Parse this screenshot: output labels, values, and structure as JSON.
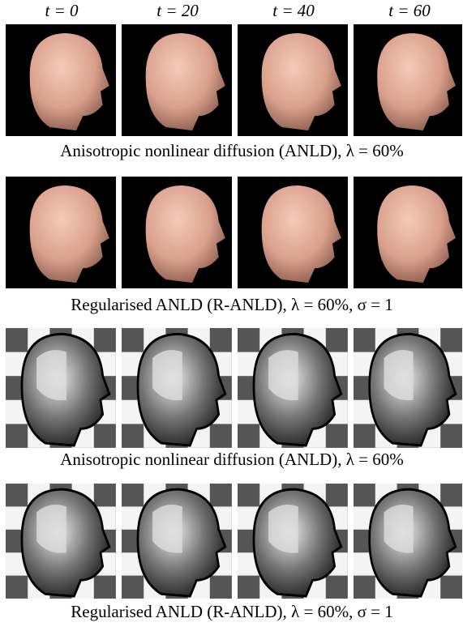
{
  "columns": [
    "t = 0",
    "t = 20",
    "t = 40",
    "t = 60"
  ],
  "rows": [
    {
      "caption": "Anisotropic nonlinear diffusion (ANLD), λ = 60%"
    },
    {
      "caption": "Regularised ANLD (R-ANLD), λ = 60%, σ = 1"
    },
    {
      "caption": "Anisotropic nonlinear diffusion (ANLD), λ = 60%"
    },
    {
      "caption": "Regularised ANLD (R-ANLD), λ = 60%, σ = 1"
    }
  ]
}
